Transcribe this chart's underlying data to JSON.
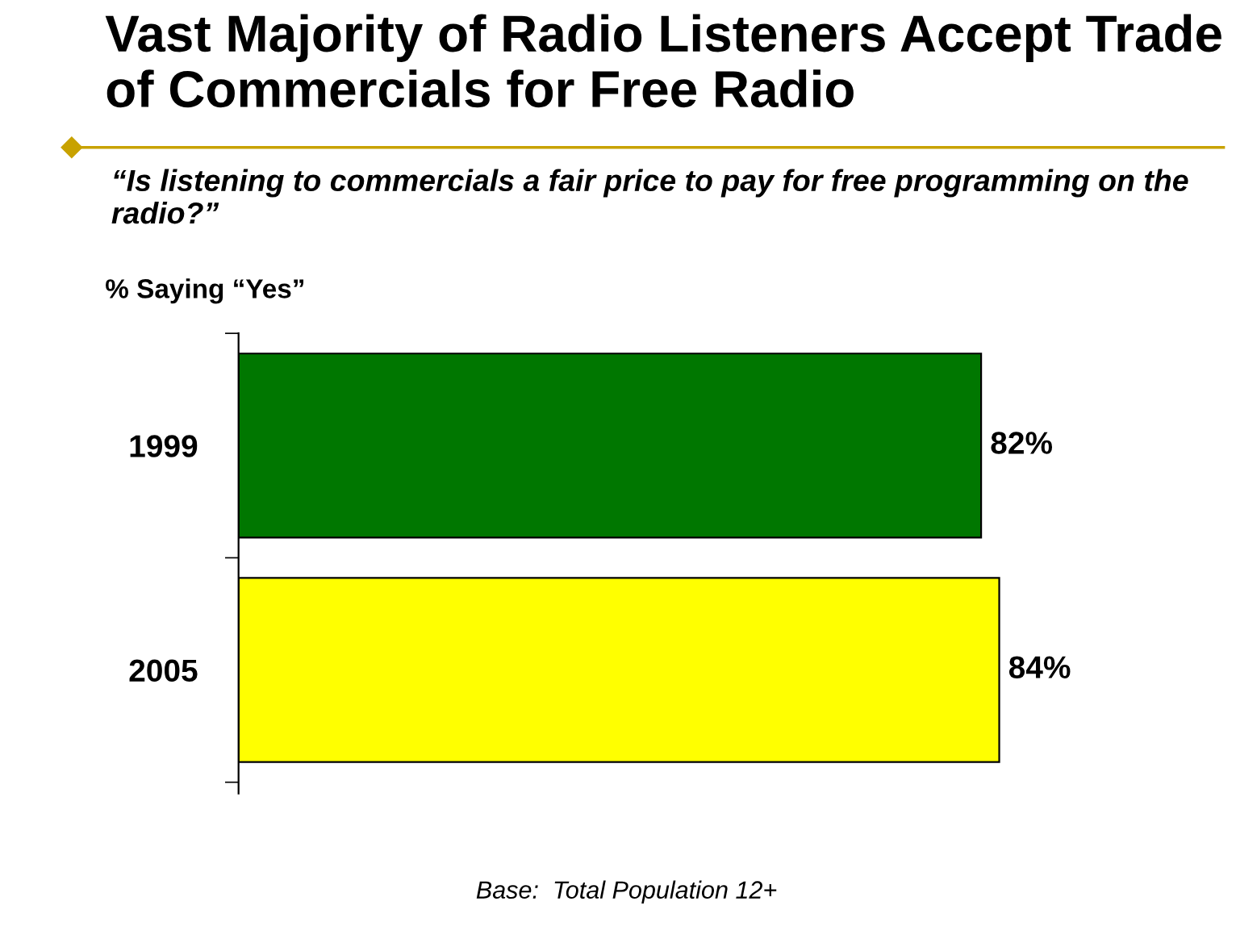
{
  "chart_data": {
    "type": "bar",
    "orientation": "horizontal",
    "title": "Vast Majority of Radio Listeners Accept Trade of Commercials for Free Radio",
    "subtitle": "“Is listening to commercials a fair price to pay for free programming on the radio?”",
    "categories": [
      "1999",
      "2005"
    ],
    "values": [
      82,
      84
    ],
    "colors": [
      "#007700",
      "#ffff00"
    ],
    "value_labels": [
      "82%",
      "84%"
    ],
    "annotations": [
      "% Saying “Yes”",
      "Base:  Total Population 12+"
    ]
  }
}
